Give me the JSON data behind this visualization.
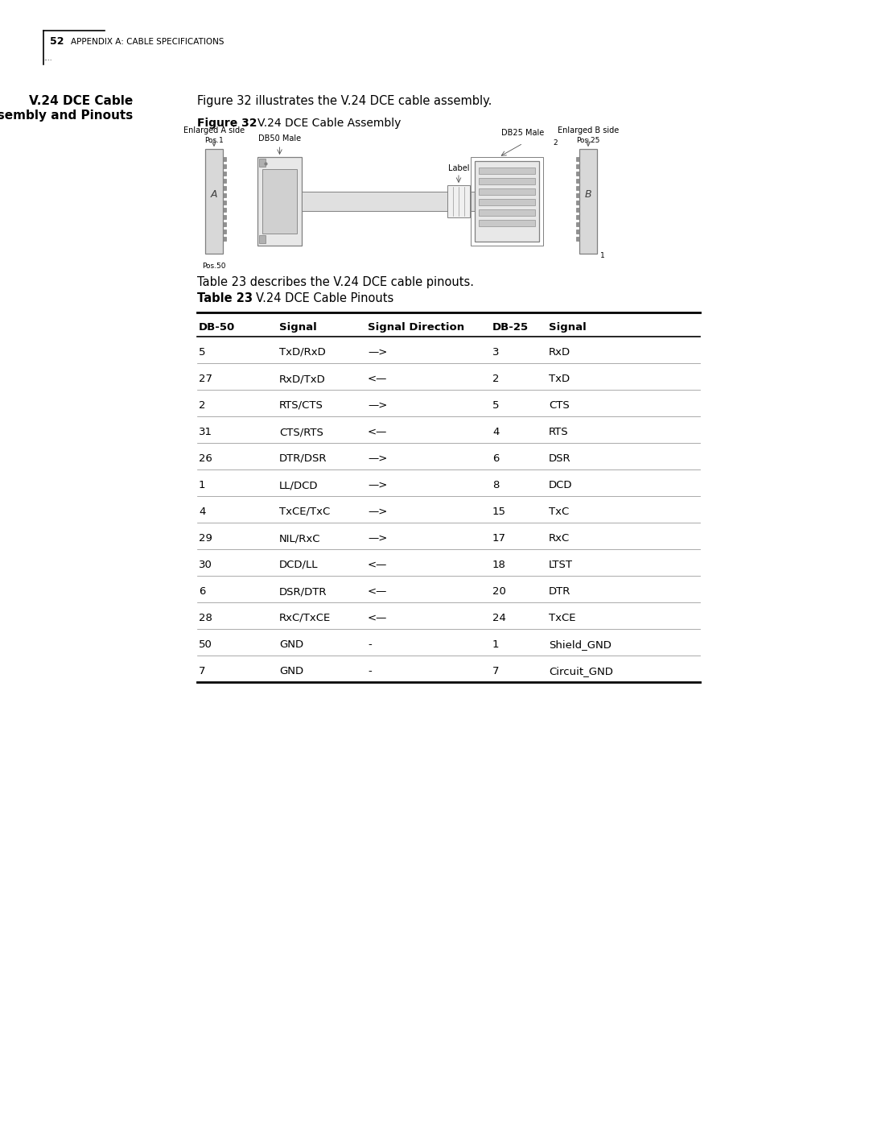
{
  "page_number": "52",
  "page_header": "APPENDIX A: CABLE SPECIFICATIONS",
  "section_title_line1": "V.24 DCE Cable",
  "section_title_line2": "Assembly and Pinouts",
  "intro_text": "Figure 32 illustrates the V.24 DCE cable assembly.",
  "figure_label_bold": "Figure 32",
  "figure_label_rest": "  V.24 DCE Cable Assembly",
  "table_intro": "Table 23 describes the V.24 DCE cable pinouts.",
  "table_label_bold": "Table 23",
  "table_label_rest": "  V.24 DCE Cable Pinouts",
  "table_headers": [
    "DB-50",
    "Signal",
    "Signal Direction",
    "DB-25",
    "Signal"
  ],
  "table_rows": [
    [
      "5",
      "TxD/RxD",
      "—>",
      "3",
      "RxD"
    ],
    [
      "27",
      "RxD/TxD",
      "<—",
      "2",
      "TxD"
    ],
    [
      "2",
      "RTS/CTS",
      "—>",
      "5",
      "CTS"
    ],
    [
      "31",
      "CTS/RTS",
      "<—",
      "4",
      "RTS"
    ],
    [
      "26",
      "DTR/DSR",
      "—>",
      "6",
      "DSR"
    ],
    [
      "1",
      "LL/DCD",
      "—>",
      "8",
      "DCD"
    ],
    [
      "4",
      "TxCE/TxC",
      "—>",
      "15",
      "TxC"
    ],
    [
      "29",
      "NIL/RxC",
      "—>",
      "17",
      "RxC"
    ],
    [
      "30",
      "DCD/LL",
      "<—",
      "18",
      "LTST"
    ],
    [
      "6",
      "DSR/DTR",
      "<—",
      "20",
      "DTR"
    ],
    [
      "28",
      "RxC/TxCE",
      "<—",
      "24",
      "TxCE"
    ],
    [
      "50",
      "GND",
      "-",
      "1",
      "Shield_GND"
    ],
    [
      "7",
      "GND",
      "-",
      "7",
      "Circuit_GND"
    ]
  ],
  "figure_annotations": {
    "enlarged_a_side": "Enlarged A side",
    "pos1_a": "Pos.1",
    "db50_male": "DB50 Male",
    "label": "Label",
    "db25_male": "DB25 Male",
    "pos2": "2",
    "enlarged_b_side": "Enlarged B side",
    "pos25": "Pos.25",
    "pos1_b": "1"
  },
  "bg_color": "#ffffff",
  "text_color": "#000000",
  "header_bg": "#ffffff",
  "line_color": "#000000",
  "table_header_fontsize": 9.5,
  "table_body_fontsize": 9.5,
  "figure_diagram_color": "#c8c8c8"
}
